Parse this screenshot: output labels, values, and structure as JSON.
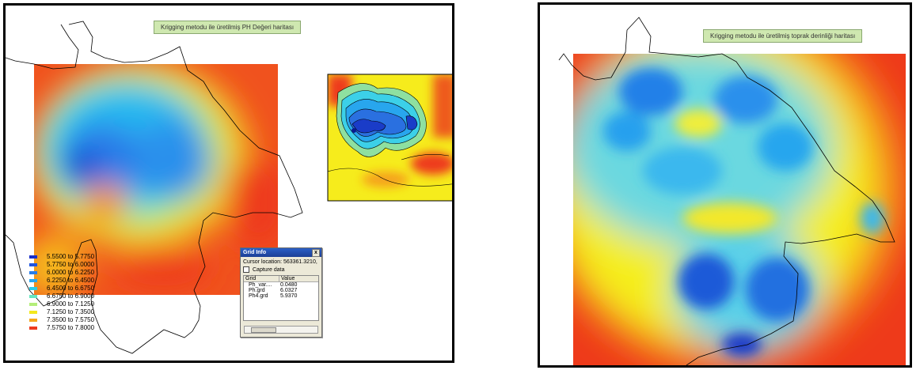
{
  "left_panel": {
    "title": "Krigging metodu ile üretilmiş PH Değeri haritası",
    "legend": [
      {
        "label": "5.5500 to 5.7750",
        "color": "#1a2fc8"
      },
      {
        "label": "5.7750 to 6.0000",
        "color": "#1f55e0"
      },
      {
        "label": "6.0000 to 6.2250",
        "color": "#2a7de8"
      },
      {
        "label": "6.2250 to 6.4500",
        "color": "#28a6ee"
      },
      {
        "label": "6.4500 to 6.6750",
        "color": "#2ccbe6"
      },
      {
        "label": "6.6750 to 6.9000",
        "color": "#66e6c0"
      },
      {
        "label": "6.9000 to 7.1250",
        "color": "#b4ee7a"
      },
      {
        "label": "7.1250 to 7.3500",
        "color": "#f3e81e"
      },
      {
        "label": "7.3500 to 7.5750",
        "color": "#f5a81c"
      },
      {
        "label": "7.5750 to 7.8000",
        "color": "#ee3a1e"
      }
    ]
  },
  "grid_info": {
    "title": "Grid Info",
    "close": "x",
    "cursor_location": "Cursor location: 563361.3210,",
    "capture_label": "Capture data",
    "columns": [
      "Grid",
      "Value"
    ],
    "rows": [
      {
        "grid": "Ph_var....",
        "value": "0.0480"
      },
      {
        "grid": "Ph.grd",
        "value": "6.0327"
      },
      {
        "grid": "Ph4.grd",
        "value": "5.9370"
      }
    ]
  },
  "right_panel": {
    "title": "Krigging metodu ile üretilmiş toprak derinliği haritası"
  },
  "colors": {
    "deep_blue": "#1030c8",
    "cyan": "#22c8ee",
    "yellow": "#f5ee1c",
    "orange": "#f5961c",
    "red": "#ee2a1a"
  }
}
